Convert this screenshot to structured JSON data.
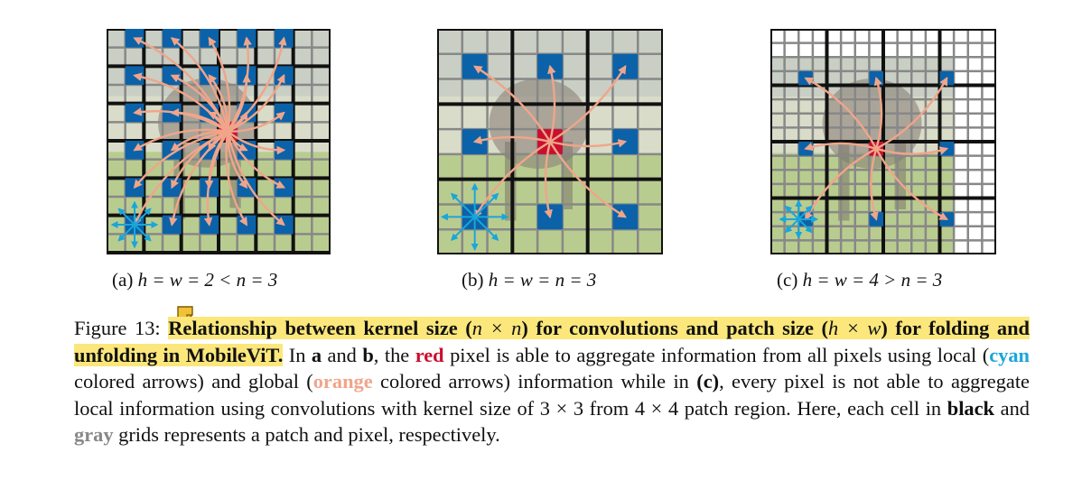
{
  "panels": [
    {
      "id": "a",
      "label": "(a) ",
      "math": "h = w = 2 < n = 3"
    },
    {
      "id": "b",
      "label": "(b) ",
      "math": "h = w = n = 3"
    },
    {
      "id": "c",
      "label": "(c) ",
      "math": "h = w = 4 > n = 3"
    }
  ],
  "caption": {
    "prefix": "Figure 13: ",
    "title_1": "Relationship between kernel size (",
    "title_math_1": "n × n",
    "title_2": ") for convolutions and patch size (",
    "title_math_2": "h × w",
    "title_3": ") for folding and unfolding in MobileViT.",
    "s1": " In ",
    "a": "a",
    "s2": " and ",
    "b": "b",
    "s3": ", the ",
    "red": "red",
    "s4": " pixel is able to aggregate information from all pixels using local (",
    "cyan": "cyan",
    "s5": " colored arrows) and global (",
    "orange": "orange",
    "s6": " colored arrows) information while in ",
    "c": "(c)",
    "s7": ", every pixel is not able to aggregate local information using convolutions with kernel size of 3 × 3 from 4 × 4 patch region. Here, each cell in ",
    "black": "black",
    "s8": " and ",
    "gray": "gray",
    "s9": " grids represents a patch and pixel, respectively."
  },
  "colors": {
    "blue_cell": "#0b62a8",
    "red_cell": "#c8102e",
    "cyan": "#1aa6d9",
    "orange": "#f0a58a",
    "highlight": "#fbe77b"
  }
}
